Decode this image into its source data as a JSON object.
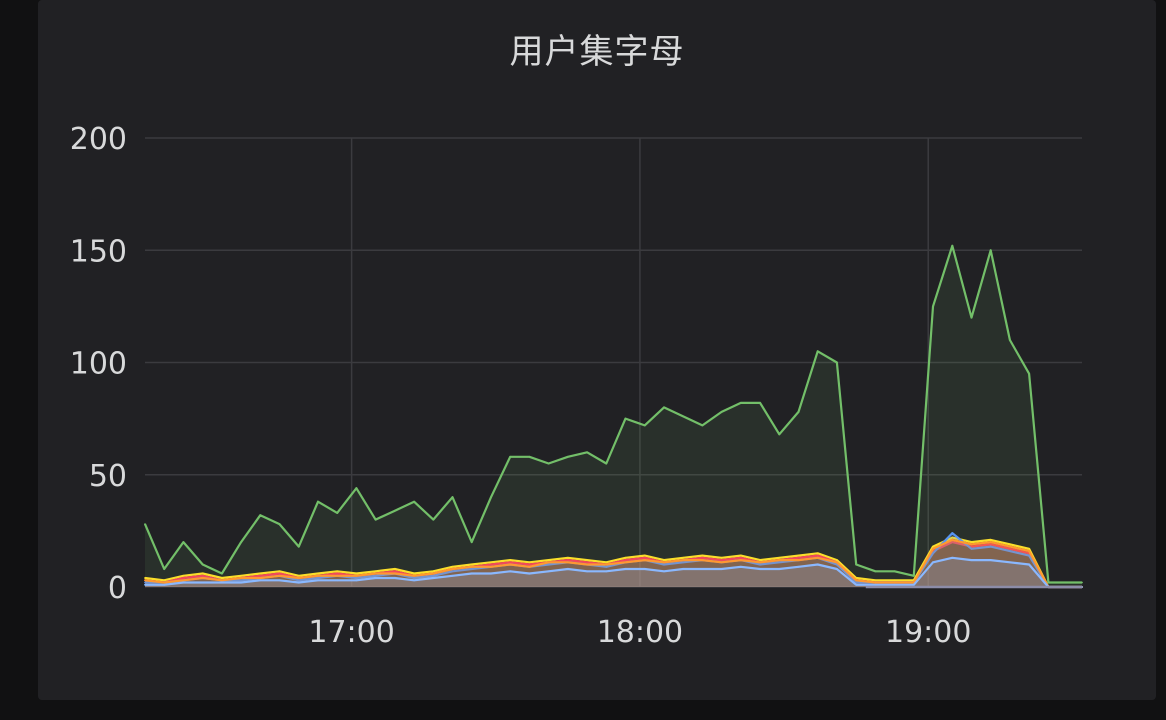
{
  "panel": {
    "title": "用户集字母"
  },
  "chart_data": {
    "type": "area",
    "title": "用户集字母",
    "xlabel": "",
    "ylabel": "",
    "ylim": [
      0,
      200
    ],
    "y_ticks": [
      0,
      50,
      100,
      150,
      200
    ],
    "x_ticks": [
      "17:00",
      "18:00",
      "19:00"
    ],
    "x_range": [
      "16:17",
      "19:32"
    ],
    "grid": true,
    "legend": "none",
    "x_minutes": [
      0,
      4,
      8,
      12,
      16,
      20,
      24,
      28,
      32,
      36,
      40,
      44,
      48,
      52,
      56,
      60,
      64,
      68,
      72,
      76,
      80,
      84,
      88,
      92,
      96,
      100,
      104,
      108,
      112,
      116,
      120,
      124,
      128,
      132,
      136,
      140,
      144,
      148,
      152,
      156,
      160,
      164,
      168,
      172,
      176,
      180,
      184,
      188,
      192,
      195
    ],
    "series": [
      {
        "name": "series-green",
        "color": "#73bf69",
        "values": [
          28,
          8,
          20,
          10,
          6,
          20,
          32,
          28,
          18,
          38,
          33,
          44,
          30,
          34,
          38,
          30,
          40,
          20,
          40,
          58,
          58,
          55,
          58,
          60,
          55,
          75,
          72,
          80,
          76,
          72,
          78,
          82,
          82,
          68,
          78,
          105,
          100,
          10,
          7,
          7,
          5,
          125,
          152,
          120,
          150,
          110,
          95,
          2,
          2,
          2
        ]
      },
      {
        "name": "series-yellow",
        "color": "#fade2a",
        "values": [
          4,
          3,
          5,
          6,
          4,
          5,
          6,
          7,
          5,
          6,
          7,
          6,
          7,
          8,
          6,
          7,
          9,
          10,
          11,
          12,
          11,
          12,
          13,
          12,
          11,
          13,
          14,
          12,
          13,
          14,
          13,
          14,
          12,
          13,
          14,
          15,
          12,
          4,
          3,
          3,
          3,
          18,
          22,
          20,
          21,
          19,
          17,
          0,
          0,
          0
        ]
      },
      {
        "name": "series-red",
        "color": "#f2495c",
        "values": [
          3,
          2,
          4,
          5,
          3,
          4,
          5,
          6,
          4,
          5,
          6,
          5,
          6,
          7,
          5,
          6,
          8,
          9,
          10,
          11,
          10,
          11,
          12,
          11,
          10,
          12,
          13,
          11,
          12,
          13,
          12,
          13,
          11,
          12,
          13,
          14,
          11,
          3,
          2,
          2,
          2,
          16,
          20,
          18,
          19,
          17,
          15,
          0,
          0,
          0
        ]
      },
      {
        "name": "series-blue",
        "color": "#5794f2",
        "values": [
          2,
          2,
          3,
          4,
          3,
          3,
          4,
          5,
          3,
          4,
          5,
          4,
          5,
          6,
          4,
          5,
          7,
          8,
          9,
          10,
          9,
          10,
          11,
          10,
          9,
          11,
          12,
          10,
          11,
          12,
          11,
          12,
          10,
          11,
          12,
          13,
          10,
          2,
          2,
          2,
          2,
          15,
          24,
          17,
          18,
          16,
          14,
          0,
          0,
          0
        ]
      },
      {
        "name": "series-orange",
        "color": "#ff9830",
        "values": [
          3,
          2,
          3,
          4,
          3,
          4,
          4,
          5,
          4,
          5,
          5,
          5,
          6,
          6,
          5,
          6,
          8,
          9,
          9,
          10,
          9,
          11,
          11,
          10,
          10,
          11,
          12,
          11,
          12,
          12,
          11,
          12,
          11,
          12,
          12,
          13,
          11,
          3,
          2,
          2,
          2,
          17,
          21,
          19,
          20,
          18,
          16,
          0,
          0,
          0
        ]
      },
      {
        "name": "series-cyan",
        "color": "#8ab8ff",
        "values": [
          1,
          1,
          2,
          2,
          2,
          2,
          3,
          3,
          2,
          3,
          3,
          3,
          4,
          4,
          3,
          4,
          5,
          6,
          6,
          7,
          6,
          7,
          8,
          7,
          7,
          8,
          8,
          7,
          8,
          8,
          8,
          9,
          8,
          8,
          9,
          10,
          8,
          1,
          1,
          1,
          1,
          11,
          13,
          12,
          12,
          11,
          10,
          0,
          0,
          0
        ]
      }
    ]
  }
}
